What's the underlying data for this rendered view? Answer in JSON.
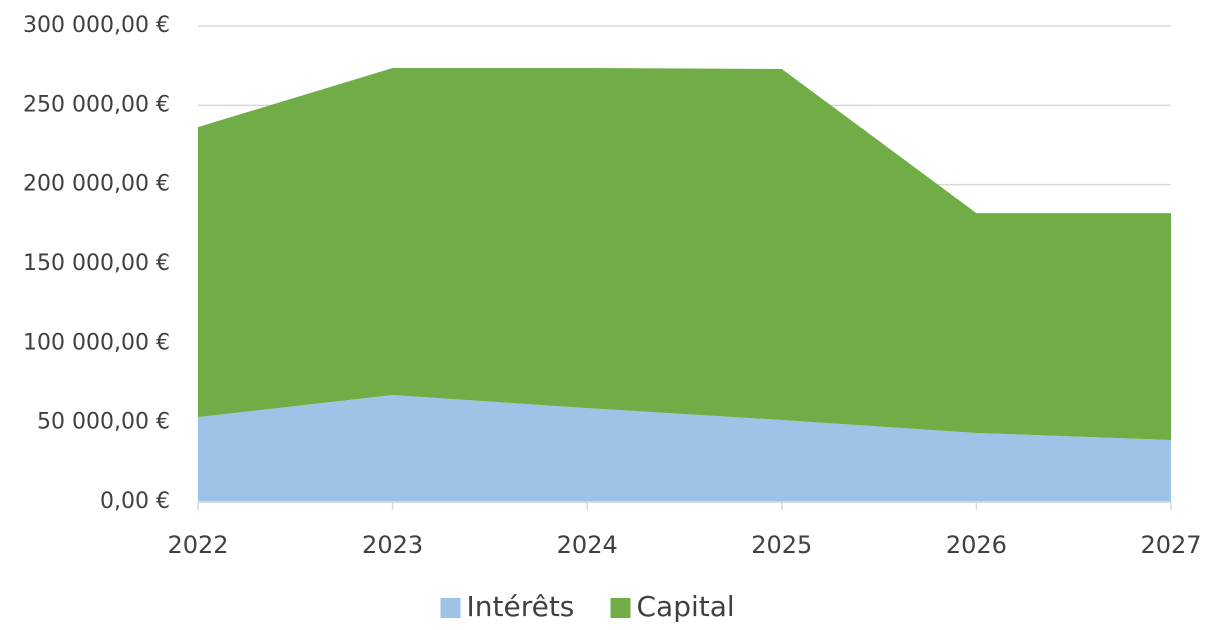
{
  "chart_data": {
    "type": "stacked-area",
    "categories": [
      "2022",
      "2023",
      "2024",
      "2025",
      "2026",
      "2027"
    ],
    "series": [
      {
        "name": "Intérêts",
        "color": "#9dc3e6",
        "values": [
          53500,
          67400,
          59200,
          51700,
          43500,
          39100
        ]
      },
      {
        "name": "Capital",
        "color": "#70ad47",
        "values": [
          182800,
          206100,
          214300,
          221200,
          138600,
          143000
        ]
      }
    ],
    "ylim": [
      0,
      300000
    ],
    "yticks": [
      {
        "value": 0,
        "label": "0,00 €"
      },
      {
        "value": 50000,
        "label": "50 000,00 €"
      },
      {
        "value": 100000,
        "label": "100 000,00 €"
      },
      {
        "value": 150000,
        "label": "150 000,00 €"
      },
      {
        "value": 200000,
        "label": "200 000,00 €"
      },
      {
        "value": 250000,
        "label": "250 000,00 €"
      },
      {
        "value": 300000,
        "label": "300 000,00 €"
      }
    ],
    "grid": true,
    "legend": "bottom"
  }
}
